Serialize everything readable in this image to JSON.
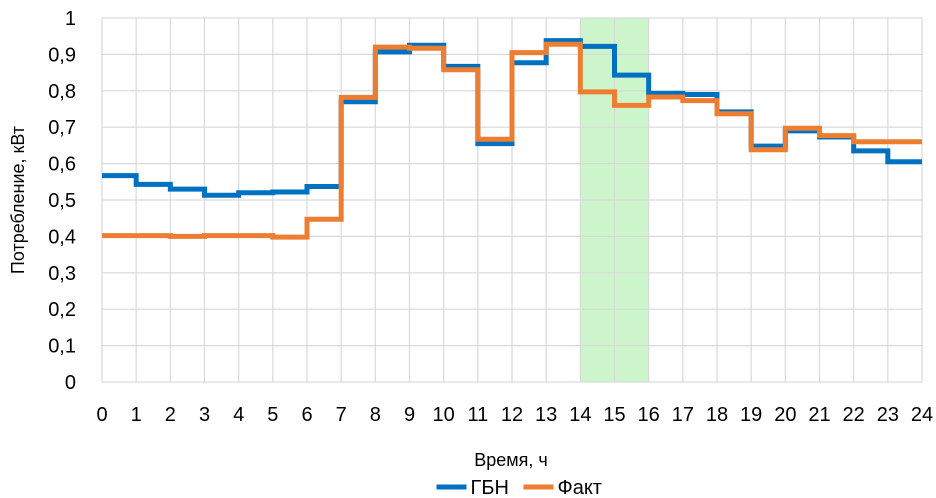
{
  "chart_data": {
    "type": "line",
    "step": true,
    "xlabel": "Время, ч",
    "ylabel": "Потребление, кВт",
    "xlim": [
      0,
      24
    ],
    "ylim": [
      0,
      1
    ],
    "x_ticks": [
      "0",
      "1",
      "2",
      "3",
      "4",
      "5",
      "6",
      "7",
      "8",
      "9",
      "10",
      "11",
      "12",
      "13",
      "14",
      "15",
      "16",
      "17",
      "18",
      "19",
      "20",
      "21",
      "22",
      "23",
      "24"
    ],
    "y_ticks": [
      "0",
      "0,1",
      "0,2",
      "0,3",
      "0,4",
      "0,5",
      "0,6",
      "0,7",
      "0,8",
      "0,9",
      "1"
    ],
    "grid": true,
    "legend_position": "bottom",
    "highlight": {
      "from": 14,
      "to": 16,
      "color": "#ccf5cc"
    },
    "series": [
      {
        "name": "ГБН",
        "color": "#0070c0",
        "values": [
          0.567,
          0.543,
          0.53,
          0.513,
          0.52,
          0.522,
          0.537,
          0.77,
          0.907,
          0.925,
          0.867,
          0.655,
          0.877,
          0.938,
          0.922,
          0.843,
          0.793,
          0.79,
          0.742,
          0.648,
          0.69,
          0.673,
          0.635,
          0.605
        ]
      },
      {
        "name": "Факт",
        "color": "#ed7d31",
        "values": [
          0.402,
          0.402,
          0.4,
          0.402,
          0.402,
          0.398,
          0.447,
          0.782,
          0.92,
          0.917,
          0.858,
          0.667,
          0.905,
          0.928,
          0.797,
          0.76,
          0.783,
          0.773,
          0.737,
          0.638,
          0.697,
          0.677,
          0.66,
          0.66
        ]
      }
    ]
  }
}
